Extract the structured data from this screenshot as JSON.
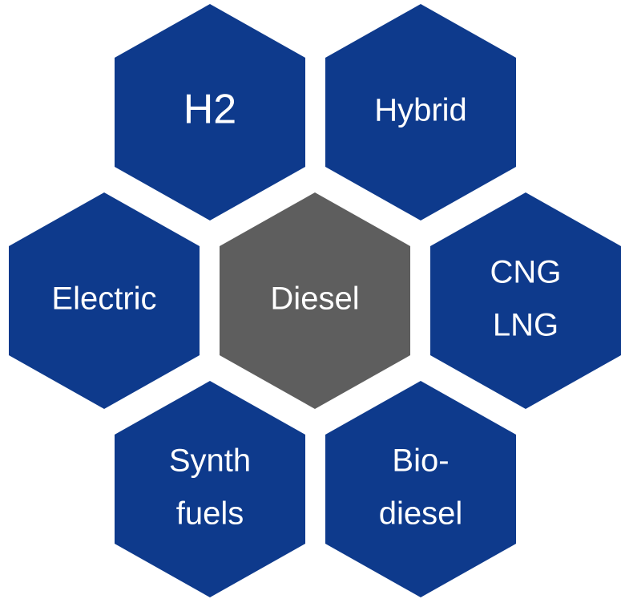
{
  "nodes": [
    {
      "lines": [
        "H2"
      ],
      "color": "#0e3a8c"
    },
    {
      "lines": [
        "Hybrid"
      ],
      "color": "#0e3a8c"
    },
    {
      "lines": [
        "Electric"
      ],
      "color": "#0e3a8c"
    },
    {
      "lines": [
        "Diesel"
      ],
      "color": "#5e5e5e"
    },
    {
      "lines": [
        "CNG",
        "LNG"
      ],
      "color": "#0e3a8c"
    },
    {
      "lines": [
        "Synth",
        "fuels"
      ],
      "color": "#0e3a8c"
    },
    {
      "lines": [
        "Bio-",
        "diesel"
      ],
      "color": "#0e3a8c"
    }
  ]
}
